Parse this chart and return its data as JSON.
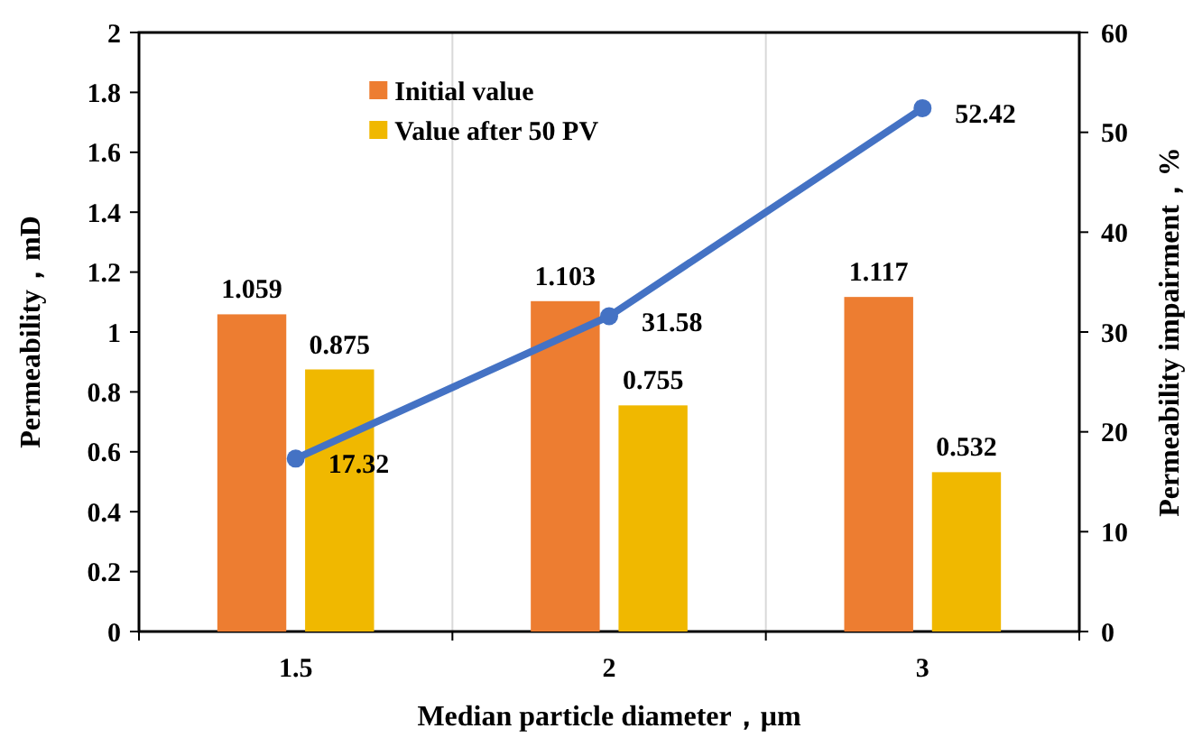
{
  "chart_data": {
    "type": "bar",
    "xlabel": "Median particle diameter，μm",
    "ylabel": "Permeability，mD",
    "y2label": "Permeability impairment，%",
    "categories": [
      "1.5",
      "2",
      "3"
    ],
    "series": [
      {
        "name": "Initial value",
        "color": "#ed7d31",
        "values": [
          1.059,
          1.103,
          1.117
        ]
      },
      {
        "name": "Value after 50 PV",
        "color": "#f0b800",
        "values": [
          0.875,
          0.755,
          0.532
        ]
      },
      {
        "type": "line",
        "axis": "y2",
        "color": "#4472c4",
        "values": [
          17.32,
          31.58,
          52.42
        ],
        "marker": "circle"
      }
    ],
    "ylim": [
      0,
      2
    ],
    "yticks": [
      0,
      0.2,
      0.4,
      0.6,
      0.8,
      1,
      1.2,
      1.4,
      1.6,
      1.8,
      2
    ],
    "y2lim": [
      0,
      60
    ],
    "y2ticks": [
      0,
      10,
      20,
      30,
      40,
      50,
      60
    ],
    "data_labels": true,
    "grid": "x",
    "legend": "top"
  }
}
